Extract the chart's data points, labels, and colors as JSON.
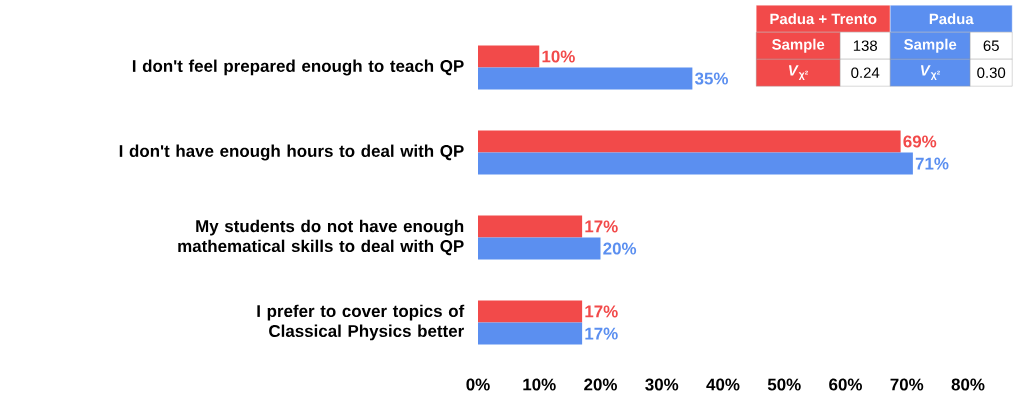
{
  "chart_data": {
    "type": "bar",
    "orientation": "horizontal",
    "categories": [
      "I don't feel prepared enough to teach QP",
      "I don't have enough hours to deal with QP",
      "My students do not have enough mathematical skills to deal with QP",
      "I prefer to cover topics of Classical Physics better"
    ],
    "series": [
      {
        "name": "Padua + Trento",
        "color": "#f24a4a",
        "values": [
          10,
          69,
          17,
          17
        ],
        "value_labels": [
          "10%",
          "69%",
          "17%",
          "17%"
        ]
      },
      {
        "name": "Padua",
        "color": "#5b8ff0",
        "values": [
          35,
          71,
          20,
          17
        ],
        "value_labels": [
          "35%",
          "71%",
          "20%",
          "17%"
        ]
      }
    ],
    "xlim": [
      0,
      80
    ],
    "xticks": [
      {
        "value": 0,
        "label": "0%"
      },
      {
        "value": 10,
        "label": "10%"
      },
      {
        "value": 20,
        "label": "20%"
      },
      {
        "value": 30,
        "label": "30%"
      },
      {
        "value": 40,
        "label": "40%"
      },
      {
        "value": 50,
        "label": "50%"
      },
      {
        "value": 60,
        "label": "60%"
      },
      {
        "value": 70,
        "label": "70%"
      },
      {
        "value": 80,
        "label": "80%"
      }
    ],
    "grid": false,
    "legend": "top right",
    "annotations": [
      "Sample",
      "138",
      "Sample",
      "65",
      "*V*$_{χ²}$",
      "0.24",
      "*V*$_{χ²}$",
      "0.30"
    ]
  }
}
